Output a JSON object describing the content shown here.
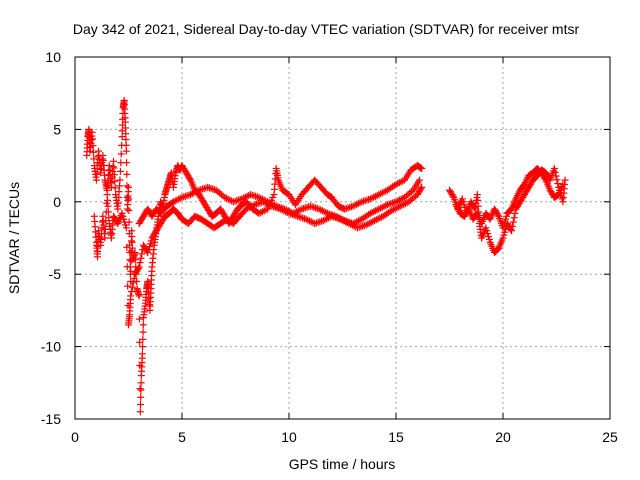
{
  "chart_data": {
    "type": "scatter",
    "title": "Day 342 of 2021, Sidereal Day-to-day VTEC variation (SDTVAR) for receiver mtsr",
    "xlabel": "GPS time / hours",
    "ylabel": "SDTVAR / TECUs",
    "xlim": [
      0,
      25
    ],
    "ylim": [
      -15,
      10
    ],
    "xticks": [
      0,
      5,
      10,
      15,
      20,
      25
    ],
    "yticks": [
      -15,
      -10,
      -5,
      0,
      5,
      10
    ],
    "grid": true,
    "marker": "+",
    "series": [
      {
        "name": "SDTVAR",
        "color": "#ff0000",
        "segments": [
          [
            [
              0.55,
              3.2
            ],
            [
              0.6,
              4.5
            ],
            [
              0.65,
              5.0
            ],
            [
              0.7,
              3.5
            ],
            [
              0.8,
              4.8
            ],
            [
              0.9,
              2.5
            ],
            [
              1.0,
              1.5
            ],
            [
              1.1,
              3.5
            ],
            [
              1.2,
              2.0
            ],
            [
              1.3,
              3.2
            ],
            [
              1.4,
              1.5
            ],
            [
              1.5,
              0.8
            ],
            [
              1.6,
              2.5
            ],
            [
              1.7,
              1.0
            ],
            [
              1.8,
              2.8
            ],
            [
              1.9,
              0.5
            ],
            [
              2.0,
              -0.5
            ],
            [
              2.1,
              1.5
            ],
            [
              2.2,
              4.5
            ],
            [
              2.25,
              6.5
            ],
            [
              2.3,
              7.0
            ],
            [
              2.35,
              5.5
            ],
            [
              2.4,
              3.5
            ],
            [
              2.45,
              -0.5
            ],
            [
              2.5,
              1.0
            ],
            [
              2.55,
              -3.0
            ],
            [
              2.6,
              -5.5
            ],
            [
              2.65,
              -2.0
            ],
            [
              2.7,
              -4.0
            ],
            [
              2.8,
              -3.5
            ],
            [
              2.9,
              -6.0
            ],
            [
              3.0,
              -6.5
            ],
            [
              3.05,
              -14.5
            ],
            [
              3.1,
              -12.0
            ],
            [
              3.15,
              -10.5
            ],
            [
              3.2,
              -8.0
            ],
            [
              3.3,
              -7.0
            ],
            [
              3.35,
              -6.0
            ],
            [
              3.4,
              -5.5
            ],
            [
              3.5,
              -7.5
            ],
            [
              3.55,
              -6.0
            ],
            [
              3.6,
              -4.5
            ],
            [
              3.7,
              -3.0
            ],
            [
              3.8,
              -2.0
            ],
            [
              3.9,
              -1.0
            ],
            [
              4.0,
              0.0
            ],
            [
              4.1,
              -0.5
            ],
            [
              4.2,
              0.5
            ],
            [
              4.3,
              1.0
            ],
            [
              4.4,
              1.5
            ],
            [
              4.5,
              2.0
            ],
            [
              4.6,
              1.0
            ],
            [
              4.7,
              2.0
            ],
            [
              4.8,
              2.5
            ],
            [
              4.9,
              2.2
            ],
            [
              5.0,
              2.5
            ],
            [
              5.2,
              2.0
            ],
            [
              5.4,
              1.5
            ],
            [
              5.6,
              0.8
            ],
            [
              5.8,
              0.5
            ],
            [
              6.0,
              0.0
            ],
            [
              6.2,
              -0.5
            ],
            [
              6.4,
              -1.0
            ],
            [
              6.6,
              -0.8
            ],
            [
              6.8,
              -0.5
            ],
            [
              7.0,
              -1.0
            ],
            [
              7.2,
              -1.5
            ],
            [
              7.4,
              -1.0
            ],
            [
              7.6,
              -0.5
            ],
            [
              7.8,
              -0.2
            ],
            [
              8.0,
              0.0
            ],
            [
              8.3,
              -0.5
            ],
            [
              8.6,
              -0.8
            ],
            [
              9.0,
              -0.5
            ],
            [
              9.3,
              0.5
            ],
            [
              9.4,
              2.3
            ],
            [
              9.5,
              1.5
            ],
            [
              9.7,
              0.8
            ],
            [
              10.0,
              0.5
            ],
            [
              10.3,
              -0.2
            ],
            [
              10.6,
              0.5
            ],
            [
              10.9,
              1.0
            ],
            [
              11.2,
              1.5
            ],
            [
              11.5,
              1.0
            ],
            [
              11.8,
              0.5
            ],
            [
              12.0,
              0.3
            ],
            [
              12.3,
              -0.3
            ],
            [
              12.6,
              -0.5
            ],
            [
              13.0,
              -0.3
            ],
            [
              13.4,
              0.0
            ],
            [
              13.8,
              0.2
            ],
            [
              14.2,
              0.5
            ],
            [
              14.6,
              0.8
            ],
            [
              15.0,
              1.2
            ],
            [
              15.4,
              1.5
            ],
            [
              15.7,
              2.2
            ],
            [
              16.0,
              2.5
            ],
            [
              16.2,
              2.3
            ]
          ],
          [
            [
              0.9,
              -1.0
            ],
            [
              1.0,
              -2.8
            ],
            [
              1.05,
              -3.8
            ],
            [
              1.1,
              -2.0
            ],
            [
              1.2,
              -3.0
            ],
            [
              1.3,
              -1.0
            ],
            [
              1.4,
              -2.5
            ],
            [
              1.5,
              0.5
            ],
            [
              1.6,
              -1.5
            ],
            [
              1.7,
              -2.5
            ],
            [
              1.8,
              -1.0
            ],
            [
              2.0,
              -1.5
            ],
            [
              2.2,
              -0.8
            ],
            [
              2.4,
              -1.8
            ],
            [
              2.5,
              -8.5
            ],
            [
              2.55,
              -7.8
            ],
            [
              2.6,
              -6.5
            ],
            [
              2.8,
              -5.0
            ],
            [
              3.0,
              -4.5
            ],
            [
              3.2,
              -3.0
            ],
            [
              3.4,
              -3.5
            ],
            [
              3.6,
              -2.5
            ],
            [
              3.8,
              -2.0
            ],
            [
              4.0,
              -1.5
            ],
            [
              4.2,
              -1.0
            ],
            [
              4.4,
              -0.8
            ],
            [
              4.6,
              -0.5
            ],
            [
              4.8,
              -0.8
            ],
            [
              5.0,
              -1.2
            ],
            [
              5.3,
              -1.5
            ],
            [
              5.6,
              -1.0
            ],
            [
              5.9,
              -1.2
            ],
            [
              6.2,
              -1.5
            ],
            [
              6.5,
              -1.8
            ],
            [
              6.8,
              -1.5
            ],
            [
              7.1,
              -1.2
            ],
            [
              7.4,
              -1.5
            ],
            [
              7.7,
              -1.0
            ],
            [
              8.0,
              -0.5
            ],
            [
              8.4,
              -0.2
            ],
            [
              8.8,
              0.0
            ],
            [
              9.2,
              -0.3
            ],
            [
              9.6,
              -0.5
            ],
            [
              10.0,
              -0.8
            ],
            [
              10.4,
              -1.0
            ],
            [
              10.8,
              -1.2
            ],
            [
              11.2,
              -1.5
            ],
            [
              11.6,
              -1.3
            ],
            [
              12.0,
              -1.0
            ],
            [
              12.4,
              -1.2
            ],
            [
              12.8,
              -1.5
            ],
            [
              13.2,
              -1.8
            ],
            [
              13.6,
              -1.6
            ],
            [
              14.0,
              -1.3
            ],
            [
              14.4,
              -1.0
            ],
            [
              14.8,
              -0.6
            ],
            [
              15.2,
              -0.3
            ],
            [
              15.6,
              0.0
            ],
            [
              16.0,
              0.5
            ],
            [
              16.2,
              1.0
            ]
          ],
          [
            [
              3.0,
              -1.5
            ],
            [
              3.2,
              -1.0
            ],
            [
              3.4,
              -0.5
            ],
            [
              3.6,
              -1.0
            ],
            [
              3.8,
              -0.5
            ],
            [
              4.0,
              -0.8
            ],
            [
              4.3,
              -0.3
            ],
            [
              4.6,
              0.0
            ],
            [
              5.0,
              0.3
            ],
            [
              5.4,
              0.5
            ],
            [
              5.8,
              0.8
            ],
            [
              6.2,
              1.0
            ],
            [
              6.6,
              0.8
            ],
            [
              7.0,
              0.3
            ],
            [
              7.4,
              0.0
            ],
            [
              7.8,
              0.2
            ],
            [
              8.2,
              0.5
            ],
            [
              8.6,
              0.3
            ],
            [
              9.0,
              0.0
            ],
            [
              9.4,
              -0.3
            ],
            [
              9.8,
              -0.5
            ],
            [
              10.2,
              -0.8
            ],
            [
              10.6,
              -0.5
            ],
            [
              11.0,
              -0.3
            ],
            [
              11.4,
              -0.5
            ],
            [
              11.8,
              -0.8
            ],
            [
              12.2,
              -1.0
            ],
            [
              12.6,
              -1.3
            ],
            [
              13.0,
              -1.5
            ],
            [
              13.4,
              -1.2
            ],
            [
              13.8,
              -0.8
            ],
            [
              14.2,
              -0.5
            ],
            [
              14.6,
              -0.2
            ],
            [
              15.0,
              0.0
            ],
            [
              15.4,
              0.3
            ],
            [
              15.8,
              0.8
            ],
            [
              16.1,
              1.5
            ]
          ],
          [
            [
              17.5,
              0.8
            ],
            [
              17.7,
              0.3
            ],
            [
              17.9,
              -0.5
            ],
            [
              18.1,
              0.2
            ],
            [
              18.3,
              -0.8
            ],
            [
              18.5,
              0.0
            ],
            [
              18.7,
              -0.5
            ],
            [
              18.8,
              0.5
            ],
            [
              18.9,
              -1.5
            ],
            [
              19.0,
              -2.5
            ],
            [
              19.2,
              -1.8
            ],
            [
              19.4,
              -2.8
            ],
            [
              19.6,
              -3.5
            ],
            [
              19.8,
              -3.2
            ],
            [
              20.0,
              -2.5
            ],
            [
              20.2,
              -1.5
            ],
            [
              20.4,
              -2.0
            ],
            [
              20.6,
              -0.5
            ],
            [
              20.8,
              0.0
            ],
            [
              21.0,
              0.5
            ],
            [
              21.2,
              1.0
            ],
            [
              21.4,
              1.5
            ],
            [
              21.6,
              1.8
            ],
            [
              21.8,
              2.2
            ],
            [
              22.0,
              2.0
            ],
            [
              22.2,
              1.5
            ],
            [
              22.4,
              2.3
            ],
            [
              22.6,
              1.0
            ],
            [
              22.8,
              0.0
            ],
            [
              22.9,
              1.5
            ]
          ],
          [
            [
              17.8,
              -0.2
            ],
            [
              18.0,
              -0.8
            ],
            [
              18.2,
              -1.0
            ],
            [
              18.4,
              -0.5
            ],
            [
              18.6,
              -1.2
            ],
            [
              18.8,
              -0.8
            ],
            [
              19.0,
              -1.5
            ],
            [
              19.2,
              -0.8
            ],
            [
              19.4,
              -1.2
            ],
            [
              19.6,
              -0.5
            ],
            [
              19.8,
              -1.0
            ],
            [
              20.0,
              -1.8
            ],
            [
              20.2,
              -0.8
            ],
            [
              20.4,
              -0.5
            ],
            [
              20.6,
              0.2
            ],
            [
              20.8,
              0.8
            ],
            [
              21.0,
              1.2
            ],
            [
              21.2,
              1.8
            ],
            [
              21.4,
              2.0
            ],
            [
              21.6,
              2.3
            ],
            [
              21.8,
              2.0
            ],
            [
              22.0,
              1.5
            ],
            [
              22.2,
              0.8
            ],
            [
              22.4,
              0.3
            ],
            [
              22.6,
              0.5
            ],
            [
              22.8,
              1.2
            ]
          ]
        ]
      }
    ]
  }
}
